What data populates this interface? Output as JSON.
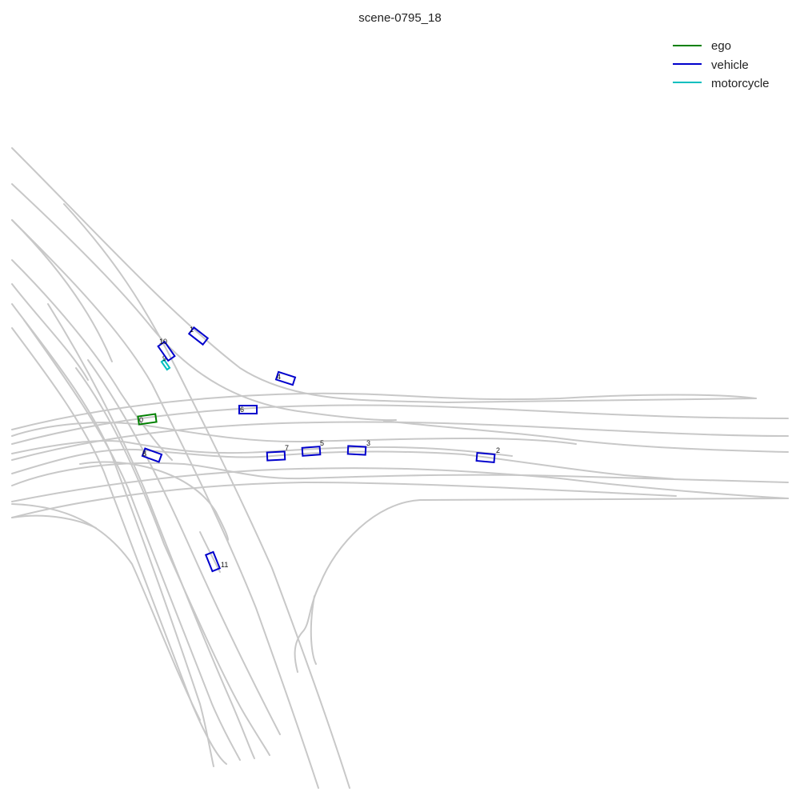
{
  "title": "scene-0795_18",
  "legend": [
    {
      "label": "ego",
      "color": "#008000"
    },
    {
      "label": "vehicle",
      "color": "#0000cc"
    },
    {
      "label": "motorcycle",
      "color": "#00bfbf"
    }
  ],
  "colors": {
    "lane": "#c8c8c8"
  },
  "agents": [
    {
      "id": "0",
      "category": "ego"
    },
    {
      "id": "1",
      "category": "vehicle"
    },
    {
      "id": "2",
      "category": "vehicle"
    },
    {
      "id": "3",
      "category": "vehicle"
    },
    {
      "id": "4",
      "category": "vehicle"
    },
    {
      "id": "5",
      "category": "vehicle"
    },
    {
      "id": "6",
      "category": "vehicle"
    },
    {
      "id": "7",
      "category": "vehicle"
    },
    {
      "id": "8",
      "category": "vehicle"
    },
    {
      "id": "9",
      "category": "motorcycle"
    },
    {
      "id": "10",
      "category": "vehicle"
    },
    {
      "id": "11",
      "category": "vehicle"
    }
  ]
}
